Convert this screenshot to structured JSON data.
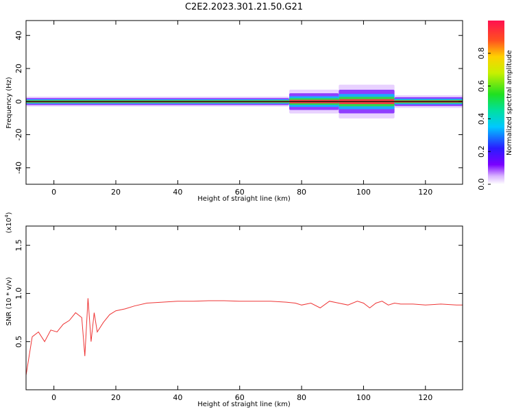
{
  "figure": {
    "title": "C2E2.2023.301.21.50.G21"
  },
  "chart_data": [
    {
      "type": "heatmap",
      "xlabel": "Height of straight line (km)",
      "ylabel": "Frequency (Hz)",
      "xlim": [
        -9,
        132
      ],
      "ylim": [
        -50,
        49
      ],
      "xticks": [
        0,
        20,
        40,
        60,
        80,
        100,
        120
      ],
      "yticks": [
        -40,
        -20,
        0,
        20,
        40
      ],
      "colorbar": {
        "label": "Normalized spectral amplitude",
        "range": [
          0,
          1
        ],
        "ticks": [
          "0.0",
          "0.2",
          "0.4",
          "0.6",
          "0.8"
        ],
        "tick_values": [
          0,
          0.2,
          0.4,
          0.6,
          0.8
        ]
      },
      "reference_line_hz": 0,
      "band": {
        "segments": [
          {
            "x_start": -9,
            "x_end": 76,
            "spread_hz": 3,
            "peak": 1.0
          },
          {
            "x_start": 76,
            "x_end": 92,
            "spread_hz": 8,
            "peak": 0.9
          },
          {
            "x_start": 92,
            "x_end": 110,
            "spread_hz": 12,
            "peak": 0.85
          },
          {
            "x_start": 110,
            "x_end": 132,
            "spread_hz": 4,
            "peak": 0.95
          }
        ]
      }
    },
    {
      "type": "line",
      "xlabel": "Height of straight line (km)",
      "ylabel": "SNR (10 * v/v)",
      "yscale_label": "(x10",
      "yscale_exp": "4",
      "yscale_close": ")",
      "xlim": [
        -9,
        132
      ],
      "ylim": [
        0,
        1.7
      ],
      "xticks": [
        0,
        20,
        40,
        60,
        80,
        100,
        120
      ],
      "yticks": [
        0.5,
        1.0,
        1.5
      ],
      "ytick_labels": [
        "0.5",
        "1.0",
        "1.5"
      ],
      "color": "#ee3333",
      "series": [
        {
          "x": [
            -9,
            -7,
            -5,
            -3,
            -1,
            1,
            3,
            5,
            7,
            9,
            10,
            11,
            12,
            13,
            14,
            16,
            18,
            20,
            23,
            26,
            30,
            35,
            40,
            45,
            50,
            55,
            60,
            65,
            70,
            75,
            78,
            80,
            83,
            86,
            89,
            92,
            95,
            98,
            100,
            102,
            104,
            106,
            108,
            110,
            112,
            116,
            120,
            125,
            130,
            132
          ],
          "y": [
            0.15,
            0.55,
            0.6,
            0.5,
            0.62,
            0.6,
            0.68,
            0.72,
            0.8,
            0.75,
            0.35,
            0.95,
            0.5,
            0.8,
            0.6,
            0.7,
            0.78,
            0.82,
            0.84,
            0.87,
            0.9,
            0.91,
            0.92,
            0.92,
            0.925,
            0.925,
            0.92,
            0.92,
            0.92,
            0.91,
            0.9,
            0.88,
            0.9,
            0.85,
            0.92,
            0.9,
            0.88,
            0.92,
            0.9,
            0.85,
            0.9,
            0.92,
            0.88,
            0.9,
            0.89,
            0.89,
            0.88,
            0.89,
            0.88,
            0.88
          ]
        }
      ]
    }
  ]
}
